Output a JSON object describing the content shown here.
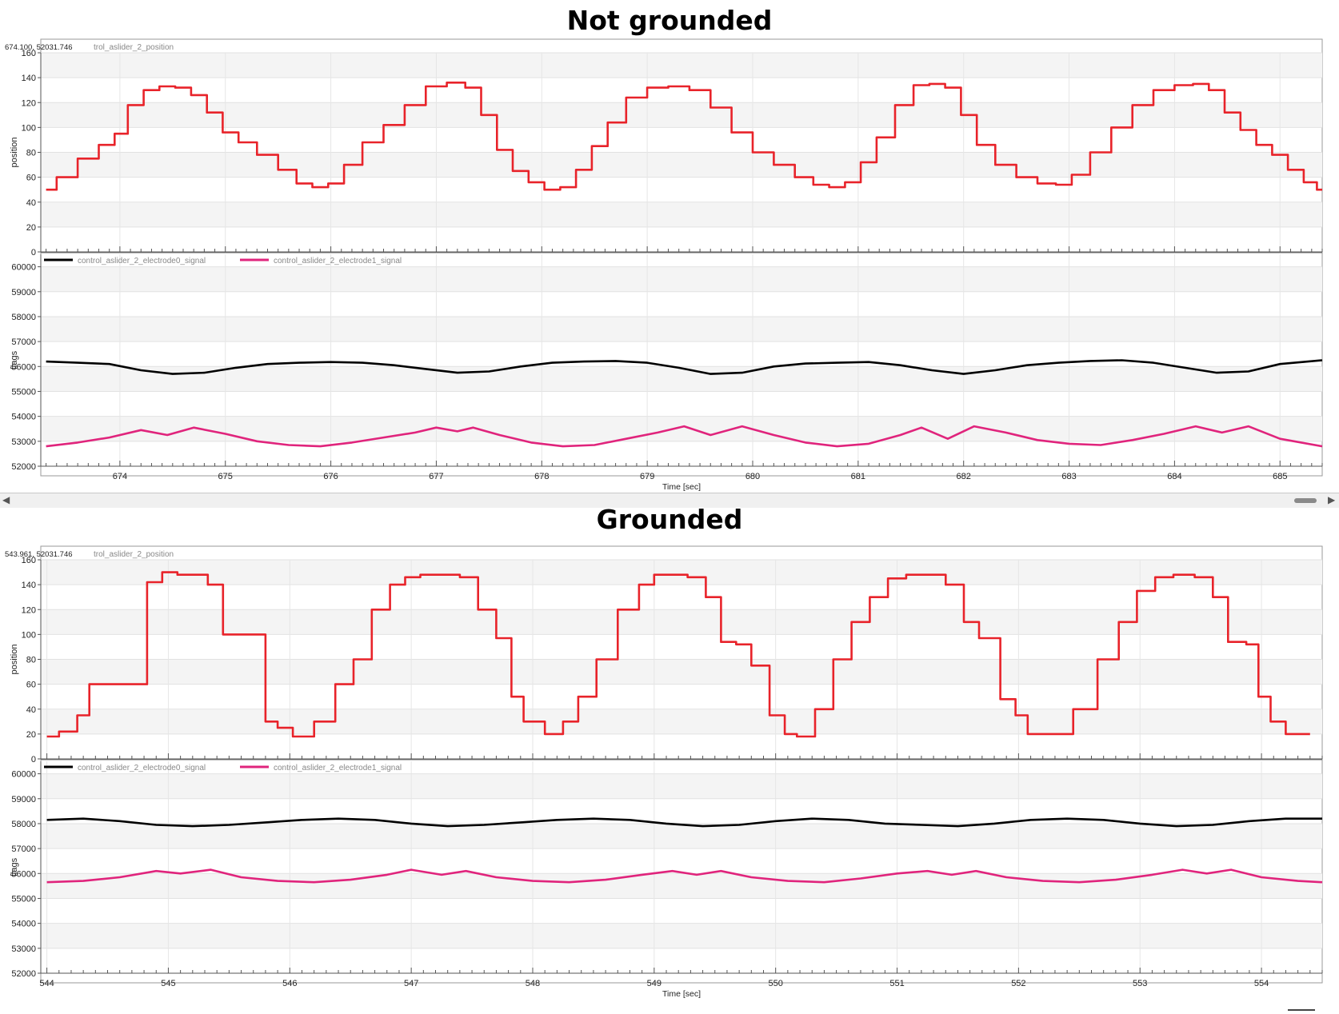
{
  "figures": [
    {
      "title": "Not grounded",
      "cursor_readout": "674.100, 52031.746",
      "top_legend": "trol_aslider_2_position",
      "top_ylabel": "position",
      "bottom_ylabel": "flags",
      "xlabel": "Time [sec]",
      "legend": [
        "control_aslider_2_electrode0_signal",
        "control_aslider_2_electrode1_signal"
      ]
    },
    {
      "title": "Grounded",
      "cursor_readout": "543.961, 52031.746",
      "top_legend": "trol_aslider_2_position",
      "top_ylabel": "position",
      "bottom_ylabel": "flags",
      "xlabel": "Time [sec]",
      "legend": [
        "control_aslider_2_electrode0_signal",
        "control_aslider_2_electrode1_signal"
      ]
    }
  ],
  "scrollbar": {
    "left_arrow": "◀",
    "right_arrow": "▶"
  },
  "chart_data": [
    {
      "type": "line",
      "title": "",
      "xlabel": "",
      "ylabel": "position",
      "xlim": [
        673.25,
        685.4
      ],
      "ylim": [
        0,
        160
      ],
      "yticks": [
        0,
        20,
        40,
        60,
        80,
        100,
        120,
        140,
        160
      ],
      "grid": true,
      "series": [
        {
          "name": "trol_aslider_2_position",
          "color": "#e8232a",
          "x": [
            673.3,
            673.5,
            673.7,
            673.9,
            674.0,
            674.15,
            674.3,
            674.45,
            674.6,
            674.75,
            674.9,
            675.05,
            675.2,
            675.4,
            675.6,
            675.75,
            675.9,
            676.05,
            676.2,
            676.4,
            676.6,
            676.8,
            677.0,
            677.2,
            677.35,
            677.5,
            677.65,
            677.8,
            677.95,
            678.1,
            678.25,
            678.4,
            678.55,
            678.7,
            678.9,
            679.1,
            679.3,
            679.5,
            679.7,
            679.9,
            680.1,
            680.3,
            680.5,
            680.65,
            680.8,
            680.95,
            681.1,
            681.25,
            681.45,
            681.6,
            681.75,
            681.9,
            682.05,
            682.2,
            682.4,
            682.6,
            682.8,
            682.95,
            683.1,
            683.3,
            683.5,
            683.7,
            683.9,
            684.1,
            684.25,
            684.4,
            684.55,
            684.7,
            684.85,
            685.0,
            685.15,
            685.3,
            685.4
          ],
          "y": [
            50,
            60,
            75,
            86,
            95,
            118,
            130,
            133,
            132,
            126,
            112,
            96,
            88,
            78,
            66,
            55,
            52,
            55,
            70,
            88,
            102,
            118,
            133,
            136,
            132,
            110,
            82,
            65,
            56,
            50,
            52,
            66,
            85,
            104,
            124,
            132,
            133,
            130,
            116,
            96,
            80,
            70,
            60,
            54,
            52,
            56,
            72,
            92,
            118,
            134,
            135,
            132,
            110,
            86,
            70,
            60,
            55,
            54,
            62,
            80,
            100,
            118,
            130,
            134,
            135,
            130,
            112,
            98,
            86,
            78,
            66,
            56,
            50
          ]
        }
      ]
    },
    {
      "type": "line",
      "title": "",
      "xlabel": "Time [sec]",
      "ylabel": "flags",
      "xlim": [
        673.25,
        685.4
      ],
      "ylim": [
        52000,
        60500
      ],
      "yticks": [
        52000,
        53000,
        54000,
        55000,
        56000,
        57000,
        58000,
        59000,
        60000
      ],
      "xticks": [
        674,
        675,
        676,
        677,
        678,
        679,
        680,
        681,
        682,
        683,
        684,
        685
      ],
      "grid": true,
      "legend_position": "top-left",
      "series": [
        {
          "name": "control_aslider_2_electrode0_signal",
          "color": "#000000",
          "x": [
            673.3,
            673.6,
            673.9,
            674.2,
            674.5,
            674.8,
            675.1,
            675.4,
            675.7,
            676.0,
            676.3,
            676.6,
            676.9,
            677.2,
            677.5,
            677.8,
            678.1,
            678.4,
            678.7,
            679.0,
            679.3,
            679.6,
            679.9,
            680.2,
            680.5,
            680.8,
            681.1,
            681.4,
            681.7,
            682.0,
            682.3,
            682.6,
            682.9,
            683.2,
            683.5,
            683.8,
            684.1,
            684.4,
            684.7,
            685.0,
            685.4
          ],
          "y": [
            56200,
            56150,
            56100,
            55850,
            55700,
            55750,
            55950,
            56100,
            56150,
            56180,
            56150,
            56050,
            55900,
            55750,
            55800,
            56000,
            56150,
            56200,
            56220,
            56150,
            55950,
            55700,
            55750,
            56000,
            56120,
            56150,
            56180,
            56050,
            55850,
            55700,
            55850,
            56050,
            56150,
            56220,
            56250,
            56150,
            55950,
            55750,
            55800,
            56100,
            56250
          ]
        },
        {
          "name": "control_aslider_2_electrode1_signal",
          "color": "#e0247c",
          "x": [
            673.3,
            673.6,
            673.9,
            674.2,
            674.45,
            674.7,
            675.0,
            675.3,
            675.6,
            675.9,
            676.2,
            676.5,
            676.8,
            677.0,
            677.2,
            677.35,
            677.6,
            677.9,
            678.2,
            678.5,
            678.8,
            679.1,
            679.35,
            679.6,
            679.9,
            680.2,
            680.5,
            680.8,
            681.1,
            681.4,
            681.6,
            681.85,
            682.1,
            682.4,
            682.7,
            683.0,
            683.3,
            683.6,
            683.9,
            684.2,
            684.45,
            684.7,
            685.0,
            685.4
          ],
          "y": [
            52800,
            52950,
            53150,
            53450,
            53250,
            53550,
            53300,
            53000,
            52850,
            52800,
            52950,
            53150,
            53350,
            53550,
            53400,
            53550,
            53250,
            52950,
            52800,
            52850,
            53100,
            53350,
            53600,
            53250,
            53600,
            53250,
            52950,
            52800,
            52900,
            53250,
            53550,
            53100,
            53600,
            53350,
            53050,
            52900,
            52850,
            53050,
            53300,
            53600,
            53350,
            53600,
            53100,
            52800
          ]
        }
      ]
    },
    {
      "type": "line",
      "title": "",
      "xlabel": "",
      "ylabel": "position",
      "xlim": [
        543.95,
        554.5
      ],
      "ylim": [
        0,
        160
      ],
      "yticks": [
        0,
        20,
        40,
        60,
        80,
        100,
        120,
        140,
        160
      ],
      "grid": true,
      "series": [
        {
          "name": "trol_aslider_2_position",
          "color": "#e8232a",
          "x": [
            544.0,
            544.2,
            544.3,
            544.4,
            544.55,
            544.75,
            544.9,
            545.0,
            545.15,
            545.25,
            545.4,
            545.5,
            545.6,
            545.75,
            545.85,
            545.95,
            546.1,
            546.3,
            546.45,
            546.6,
            546.75,
            546.9,
            547.0,
            547.15,
            547.3,
            547.5,
            547.6,
            547.8,
            547.85,
            548.0,
            548.2,
            548.3,
            548.45,
            548.6,
            548.8,
            548.95,
            549.05,
            549.2,
            549.35,
            549.5,
            549.6,
            549.75,
            549.85,
            550.05,
            550.1,
            550.25,
            550.4,
            550.55,
            550.7,
            550.85,
            551.0,
            551.15,
            551.3,
            551.5,
            551.6,
            551.75,
            551.95,
            552.0,
            552.15,
            552.35,
            552.55,
            552.75,
            552.9,
            553.05,
            553.2,
            553.35,
            553.55,
            553.65,
            553.8,
            553.95,
            554.0,
            554.15,
            554.25,
            554.4
          ],
          "y": [
            18,
            22,
            35,
            60,
            60,
            60,
            142,
            150,
            148,
            148,
            140,
            100,
            100,
            100,
            30,
            25,
            18,
            30,
            60,
            80,
            120,
            140,
            146,
            148,
            148,
            146,
            120,
            97,
            50,
            30,
            20,
            30,
            50,
            80,
            120,
            140,
            148,
            148,
            146,
            130,
            94,
            92,
            75,
            35,
            20,
            18,
            40,
            80,
            110,
            130,
            145,
            148,
            148,
            140,
            110,
            97,
            48,
            35,
            20,
            20,
            40,
            80,
            110,
            135,
            146,
            148,
            146,
            130,
            94,
            92,
            50,
            30,
            20,
            20
          ]
        }
      ]
    },
    {
      "type": "line",
      "title": "",
      "xlabel": "Time [sec]",
      "ylabel": "flags",
      "xlim": [
        543.95,
        554.5
      ],
      "ylim": [
        52000,
        60500
      ],
      "yticks": [
        52000,
        53000,
        54000,
        55000,
        56000,
        57000,
        58000,
        59000,
        60000
      ],
      "xticks": [
        544,
        545,
        546,
        547,
        548,
        549,
        550,
        551,
        552,
        553,
        554
      ],
      "grid": true,
      "legend_position": "top-left",
      "series": [
        {
          "name": "control_aslider_2_electrode0_signal",
          "color": "#000000",
          "x": [
            544.0,
            544.3,
            544.6,
            544.9,
            545.2,
            545.5,
            545.8,
            546.1,
            546.4,
            546.7,
            547.0,
            547.3,
            547.6,
            547.9,
            548.2,
            548.5,
            548.8,
            549.1,
            549.4,
            549.7,
            550.0,
            550.3,
            550.6,
            550.9,
            551.2,
            551.5,
            551.8,
            552.1,
            552.4,
            552.7,
            553.0,
            553.3,
            553.6,
            553.9,
            554.2,
            554.5
          ],
          "y": [
            58150,
            58200,
            58100,
            57950,
            57900,
            57950,
            58050,
            58150,
            58200,
            58150,
            58000,
            57900,
            57950,
            58050,
            58150,
            58200,
            58150,
            58000,
            57900,
            57950,
            58100,
            58200,
            58150,
            58000,
            57950,
            57900,
            58000,
            58150,
            58200,
            58150,
            58000,
            57900,
            57950,
            58100,
            58200,
            58200
          ]
        },
        {
          "name": "control_aslider_2_electrode1_signal",
          "color": "#e0247c",
          "x": [
            544.0,
            544.3,
            544.6,
            544.9,
            545.1,
            545.35,
            545.6,
            545.9,
            546.2,
            546.5,
            546.8,
            547.0,
            547.25,
            547.45,
            547.7,
            548.0,
            548.3,
            548.6,
            548.9,
            549.15,
            549.35,
            549.55,
            549.8,
            550.1,
            550.4,
            550.7,
            551.0,
            551.25,
            551.45,
            551.65,
            551.9,
            552.2,
            552.5,
            552.8,
            553.1,
            553.35,
            553.55,
            553.75,
            554.0,
            554.3,
            554.5
          ],
          "y": [
            55650,
            55700,
            55850,
            56100,
            56000,
            56150,
            55850,
            55700,
            55650,
            55750,
            55950,
            56150,
            55950,
            56100,
            55850,
            55700,
            55650,
            55750,
            55950,
            56100,
            55950,
            56100,
            55850,
            55700,
            55650,
            55800,
            56000,
            56100,
            55950,
            56100,
            55850,
            55700,
            55650,
            55750,
            55950,
            56150,
            56000,
            56150,
            55850,
            55700,
            55650
          ]
        }
      ]
    }
  ]
}
